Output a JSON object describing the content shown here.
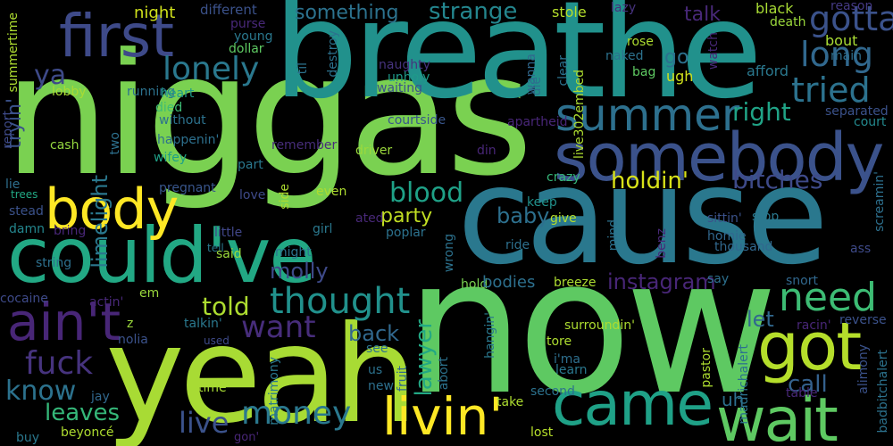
{
  "words": [
    {
      "text": "niggas",
      "color": "#7ad151"
    },
    {
      "text": "now",
      "color": "#5ec962"
    },
    {
      "text": "breathe",
      "color": "#21918c"
    },
    {
      "text": "cause",
      "color": "#2a788e"
    },
    {
      "text": "yeah",
      "color": "#a8db34"
    },
    {
      "text": "could've",
      "color": "#22a884"
    },
    {
      "text": "somebody",
      "color": "#3b528b"
    },
    {
      "text": "first",
      "color": "#3e4a89"
    },
    {
      "text": "came",
      "color": "#1fa187"
    },
    {
      "text": "wait",
      "color": "#5ec962"
    },
    {
      "text": "body",
      "color": "#fde725"
    },
    {
      "text": "got",
      "color": "#b5de2b"
    },
    {
      "text": "ain't",
      "color": "#482677"
    },
    {
      "text": "livin'",
      "color": "#fde725"
    },
    {
      "text": "summer",
      "color": "#2d708e"
    },
    {
      "text": "need",
      "color": "#3dbc74"
    },
    {
      "text": "money",
      "color": "#2a788e"
    },
    {
      "text": "thought",
      "color": "#21918c"
    },
    {
      "text": "gotta",
      "color": "#3b528b"
    },
    {
      "text": "long",
      "color": "#31688e"
    },
    {
      "text": "tried",
      "color": "#2c728e"
    },
    {
      "text": "lonely",
      "color": "#2a788e"
    },
    {
      "text": "strange",
      "color": "#24868e"
    },
    {
      "text": "right",
      "color": "#20a386"
    },
    {
      "text": "bitches",
      "color": "#3e4a89"
    },
    {
      "text": "holdin'",
      "color": "#d8e219"
    },
    {
      "text": "blood",
      "color": "#1fa187"
    },
    {
      "text": "fuck",
      "color": "#46337e"
    },
    {
      "text": "know",
      "color": "#2c728e"
    },
    {
      "text": "leaves",
      "color": "#35b779"
    },
    {
      "text": "live",
      "color": "#3b528b"
    },
    {
      "text": "want",
      "color": "#472d7b"
    },
    {
      "text": "told",
      "color": "#addc30"
    },
    {
      "text": "party",
      "color": "#c2df23"
    },
    {
      "text": "lawyer",
      "color": "#22a884"
    },
    {
      "text": "instagram",
      "color": "#482677"
    },
    {
      "text": "call",
      "color": "#34618d"
    },
    {
      "text": "let",
      "color": "#31688e"
    },
    {
      "text": "back",
      "color": "#31688e"
    },
    {
      "text": "molly",
      "color": "#3e4a89"
    },
    {
      "text": "baby",
      "color": "#2d708e"
    },
    {
      "text": "limelight",
      "color": "#2a788e"
    },
    {
      "text": "something",
      "color": "#2c728e"
    },
    {
      "text": "talk",
      "color": "#482878"
    },
    {
      "text": "ya",
      "color": "#3e4a89"
    },
    {
      "text": "tryin'",
      "color": "#3b528b"
    },
    {
      "text": "night",
      "color": "#d0e11c"
    },
    {
      "text": "uh",
      "color": "#2d708e"
    },
    {
      "text": "go",
      "color": "#2c728e"
    },
    {
      "text": "black",
      "color": "#a8db34"
    },
    {
      "text": "death",
      "color": "#9bd93c"
    },
    {
      "text": "reason",
      "color": "#443983"
    },
    {
      "text": "bout",
      "color": "#a8db34"
    },
    {
      "text": "main",
      "color": "#2e6f8e"
    },
    {
      "text": "afford",
      "color": "#2a788e"
    },
    {
      "text": "different",
      "color": "#3b528b"
    },
    {
      "text": "purse",
      "color": "#482878"
    },
    {
      "text": "young",
      "color": "#2a788e"
    },
    {
      "text": "dollar",
      "color": "#5ec962"
    },
    {
      "text": "stole",
      "color": "#b5de2b"
    },
    {
      "text": "lazy",
      "color": "#46327e"
    },
    {
      "text": "rose",
      "color": "#addc30"
    },
    {
      "text": "naked",
      "color": "#2c728e"
    },
    {
      "text": "ugh",
      "color": "#d0e11c"
    },
    {
      "text": "bag",
      "color": "#5ec962"
    },
    {
      "text": "naughty",
      "color": "#46337e"
    },
    {
      "text": "unholy",
      "color": "#1f9a8a"
    },
    {
      "text": "waiting",
      "color": "#3b528b"
    },
    {
      "text": "courtside",
      "color": "#39568c"
    },
    {
      "text": "apartheid",
      "color": "#482677"
    },
    {
      "text": "din",
      "color": "#482677"
    },
    {
      "text": "crazy",
      "color": "#35b779"
    },
    {
      "text": "court",
      "color": "#23898e"
    },
    {
      "text": "lobby",
      "color": "#a8db34"
    },
    {
      "text": "running",
      "color": "#2c728e"
    },
    {
      "text": "heart",
      "color": "#1f9a8a"
    },
    {
      "text": "died",
      "color": "#3dbc74"
    },
    {
      "text": "without",
      "color": "#2c728e"
    },
    {
      "text": "happenin'",
      "color": "#2d708e"
    },
    {
      "text": "wifey",
      "color": "#1fa187"
    },
    {
      "text": "remember",
      "color": "#472d7b"
    },
    {
      "text": "driver",
      "color": "#9bd93c"
    },
    {
      "text": "cash",
      "color": "#95d840"
    },
    {
      "text": "lie",
      "color": "#2e6f8e"
    },
    {
      "text": "trees",
      "color": "#22a884"
    },
    {
      "text": "stead",
      "color": "#3b528b"
    },
    {
      "text": "damn",
      "color": "#24868e"
    },
    {
      "text": "bring",
      "color": "#482677"
    },
    {
      "text": "string",
      "color": "#2d708e"
    },
    {
      "text": "cocaine",
      "color": "#3e4a89"
    },
    {
      "text": "actin'",
      "color": "#482878"
    },
    {
      "text": "buy",
      "color": "#2a788e"
    },
    {
      "text": "jay",
      "color": "#31688e"
    },
    {
      "text": "beyoncé",
      "color": "#addc30"
    },
    {
      "text": "pregnant",
      "color": "#39568c"
    },
    {
      "text": "love",
      "color": "#3e4a89"
    },
    {
      "text": "even",
      "color": "#addc30"
    },
    {
      "text": "ated",
      "color": "#482878"
    },
    {
      "text": "keep",
      "color": "#21918c"
    },
    {
      "text": "give",
      "color": "#b5de2b"
    },
    {
      "text": "little",
      "color": "#404688"
    },
    {
      "text": "girl",
      "color": "#2a788e"
    },
    {
      "text": "poplar",
      "color": "#2c728e"
    },
    {
      "text": "tell",
      "color": "#2a788e"
    },
    {
      "text": "said",
      "color": "#9bd93c"
    },
    {
      "text": "might",
      "color": "#2c728e"
    },
    {
      "text": "ride",
      "color": "#2d708e"
    },
    {
      "text": "sittin'",
      "color": "#3b528b"
    },
    {
      "text": "homie",
      "color": "#31688e"
    },
    {
      "text": "thousand",
      "color": "#31688e"
    },
    {
      "text": "stop",
      "color": "#2a788e"
    },
    {
      "text": "ass",
      "color": "#3e4a89"
    },
    {
      "text": "say",
      "color": "#2d708e"
    },
    {
      "text": "snort",
      "color": "#31688e"
    },
    {
      "text": "hold",
      "color": "#7ad151"
    },
    {
      "text": "bodies",
      "color": "#2d708e"
    },
    {
      "text": "breeze",
      "color": "#addc30"
    },
    {
      "text": "em",
      "color": "#9bd93c"
    },
    {
      "text": "z",
      "color": "#9bd93c"
    },
    {
      "text": "talkin'",
      "color": "#2a788e"
    },
    {
      "text": "nolia",
      "color": "#3b528b"
    },
    {
      "text": "used",
      "color": "#3e4a89"
    },
    {
      "text": "time",
      "color": "#a8db34"
    },
    {
      "text": "see",
      "color": "#2c728e"
    },
    {
      "text": "us",
      "color": "#2c728e"
    },
    {
      "text": "new",
      "color": "#2d708e"
    },
    {
      "text": "take",
      "color": "#addc30"
    },
    {
      "text": "second",
      "color": "#2c728e"
    },
    {
      "text": "lost",
      "color": "#b5de2b"
    },
    {
      "text": "surroundin'",
      "color": "#addc30"
    },
    {
      "text": "tore",
      "color": "#addc30"
    },
    {
      "text": "i'ma",
      "color": "#2e6f8e"
    },
    {
      "text": "learn",
      "color": "#2a788e"
    },
    {
      "text": "racin'",
      "color": "#482677"
    },
    {
      "text": "reverse",
      "color": "#3b528b"
    },
    {
      "text": "table",
      "color": "#482878"
    },
    {
      "text": "gon'",
      "color": "#482677"
    },
    {
      "text": "clear",
      "color": "#2c728e"
    },
    {
      "text": "live302embed",
      "color": "#addc30"
    },
    {
      "text": "watch",
      "color": "#482878"
    },
    {
      "text": "destroy",
      "color": "#2c728e"
    },
    {
      "text": "wanna",
      "color": "#31688e"
    },
    {
      "text": "til",
      "color": "#2c728e"
    },
    {
      "text": "die",
      "color": "#2e6f8e"
    },
    {
      "text": "separated",
      "color": "#3b528b"
    },
    {
      "text": "screamin'",
      "color": "#2d708e"
    },
    {
      "text": "summertime",
      "color": "#addc30"
    },
    {
      "text": "report",
      "color": "#3e4a89"
    },
    {
      "text": "two",
      "color": "#2d708e"
    },
    {
      "text": "part",
      "color": "#2a788e"
    },
    {
      "text": "side",
      "color": "#addc30"
    },
    {
      "text": "wrong",
      "color": "#2c728e"
    },
    {
      "text": "mind",
      "color": "#2c728e"
    },
    {
      "text": "benz",
      "color": "#482878"
    },
    {
      "text": "matrimony",
      "color": "#2a788e"
    },
    {
      "text": "fruit",
      "color": "#31688e"
    },
    {
      "text": "abort",
      "color": "#2c728e"
    },
    {
      "text": "hangin'",
      "color": "#2a788e"
    },
    {
      "text": "pastor",
      "color": "#addc30"
    },
    {
      "text": "alimony",
      "color": "#3b528b"
    },
    {
      "text": "madrichalert",
      "color": "#2c728e"
    },
    {
      "text": "badbitchalert",
      "color": "#2c728e"
    }
  ]
}
